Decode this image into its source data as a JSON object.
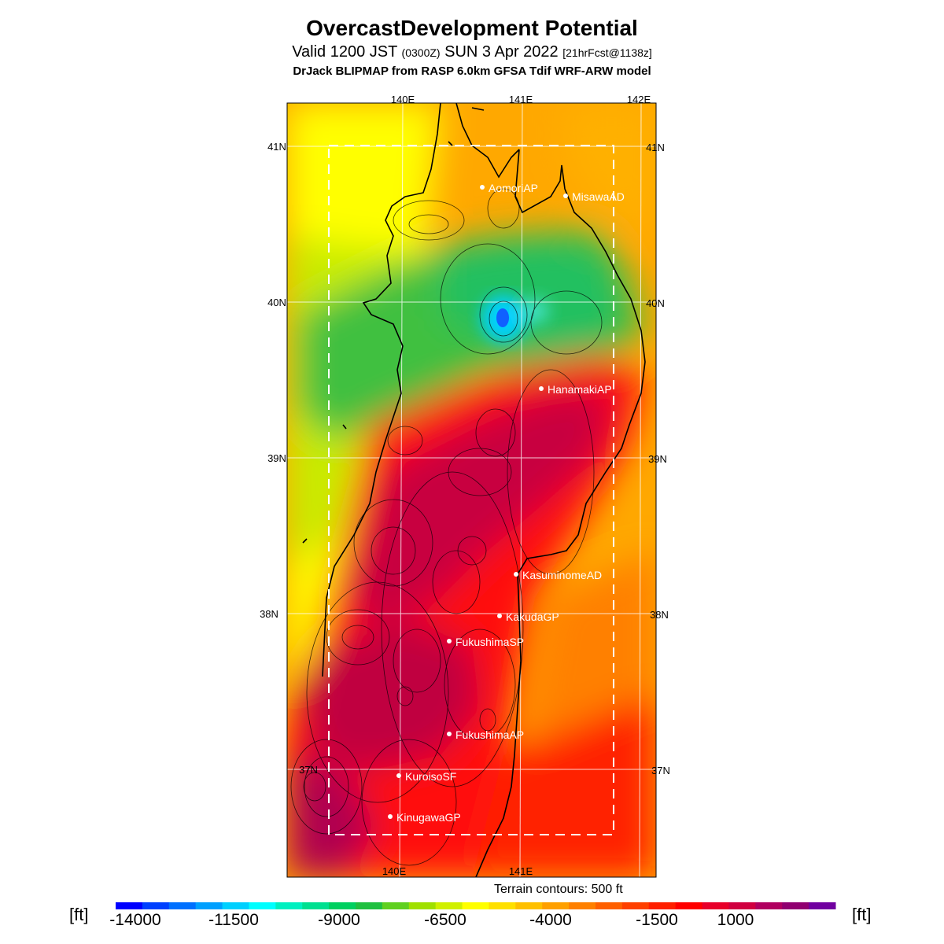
{
  "title": "OvercastDevelopment Potential",
  "subtitle": {
    "main": "Valid 1200 JST",
    "utc": "(0300Z)",
    "date": "SUN 3 Apr 2022",
    "forecast": "[21hrFcst@1138z]"
  },
  "model_line": "DrJack BLIPMAP from RASP 6.0km GFSA Tdif WRF-ARW model",
  "grid_labels": {
    "lon_top": [
      "140E",
      "141E",
      "142E"
    ],
    "lon_bottom": [
      "140E",
      "141E"
    ],
    "lat_left": [
      "41N",
      "40N",
      "39N",
      "38N",
      "37N"
    ],
    "lat_right": [
      "41N",
      "40N",
      "39N",
      "38N",
      "37N"
    ]
  },
  "stations": [
    {
      "name": "AomoriAP"
    },
    {
      "name": "MisawaAD"
    },
    {
      "name": "HanamakiAP"
    },
    {
      "name": "KasuminomeAD"
    },
    {
      "name": "KakudaGP"
    },
    {
      "name": "FukushimaSP"
    },
    {
      "name": "FukushimaAP"
    },
    {
      "name": "KuroisoSF"
    },
    {
      "name": "KinugawaGP"
    }
  ],
  "terrain_note": "Terrain contours: 500 ft",
  "colorbar": {
    "unit": "[ft]",
    "tick_labels": [
      "-14000",
      "-11500",
      "-9000",
      "-6500",
      "-4000",
      "-1500",
      "1000"
    ],
    "colors": [
      "#0000ff",
      "#0040ff",
      "#0070ff",
      "#00a0ff",
      "#00d0ff",
      "#00ffff",
      "#00f0c0",
      "#00e090",
      "#00d060",
      "#20c040",
      "#60d020",
      "#a0e000",
      "#d0f000",
      "#ffff00",
      "#ffe000",
      "#ffc000",
      "#ffa000",
      "#ff8000",
      "#ff6000",
      "#ff4000",
      "#ff2000",
      "#ff0000",
      "#e8002a",
      "#d00040",
      "#b00060",
      "#900070",
      "#7000a0"
    ]
  }
}
